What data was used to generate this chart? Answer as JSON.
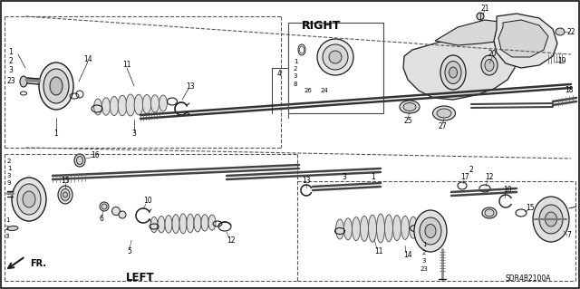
{
  "background_color": "#ffffff",
  "text_color": "#000000",
  "line_color": "#1a1a1a",
  "right_label": "RIGHT",
  "left_label": "LEFT",
  "fr_label": "FR.",
  "diagram_code": "SDR4B2100A",
  "figsize": [
    6.4,
    3.19
  ],
  "dpi": 100,
  "border": [
    2,
    2,
    636,
    315
  ]
}
